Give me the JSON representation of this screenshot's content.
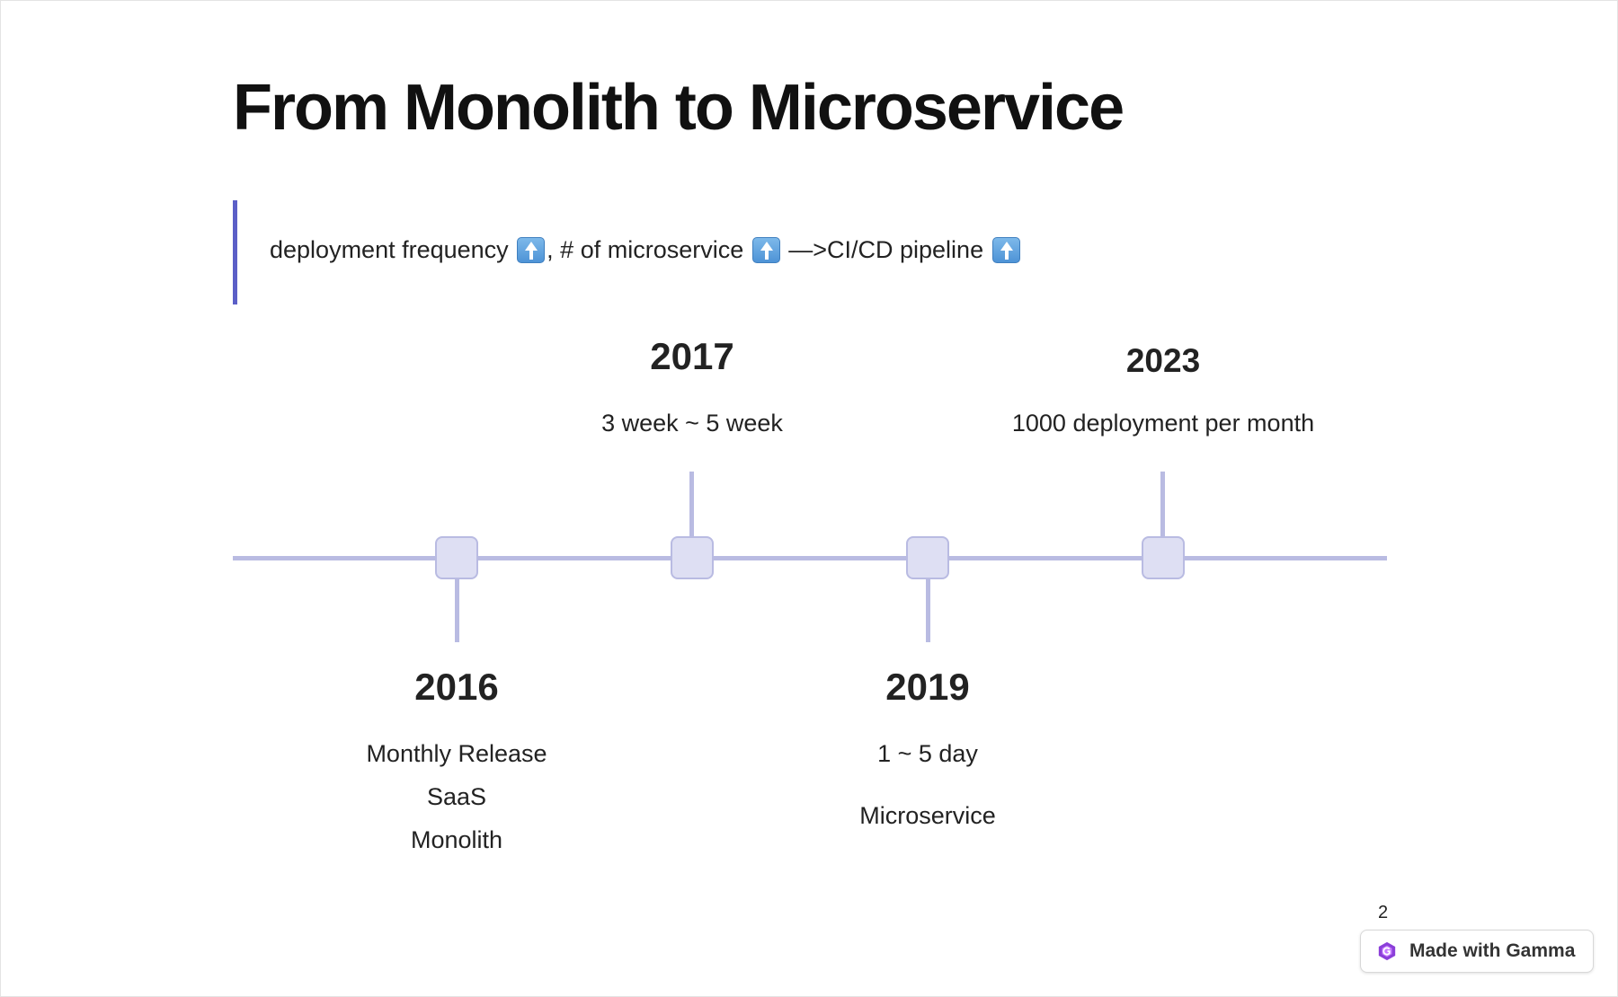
{
  "slide": {
    "title": "From Monolith to Microservice",
    "callout": {
      "segments": [
        {
          "text": "deployment frequency ",
          "icon": "up-arrow-icon"
        },
        {
          "text": ", # of microservice ",
          "icon": "up-arrow-icon"
        },
        {
          "text": " —>CI/CD pipeline ",
          "icon": "up-arrow-icon"
        }
      ]
    },
    "timeline": [
      {
        "year": "2016",
        "lines": [
          "Monthly Release",
          "SaaS",
          "Monolith"
        ]
      },
      {
        "year": "2017",
        "lines": [
          "3 week ~ 5 week"
        ]
      },
      {
        "year": "2019",
        "lines": [
          "1 ~ 5 day",
          "Microservice"
        ]
      },
      {
        "year": "2023",
        "lines": [
          "1000 deployment per month"
        ]
      }
    ],
    "page_number": "2"
  },
  "badge": {
    "label": "Made with Gamma",
    "icon": "gamma-logo-icon"
  },
  "colors": {
    "accent": "#5b5fc7",
    "timeline": "#b9bbe2",
    "node_fill": "#dedff3"
  }
}
